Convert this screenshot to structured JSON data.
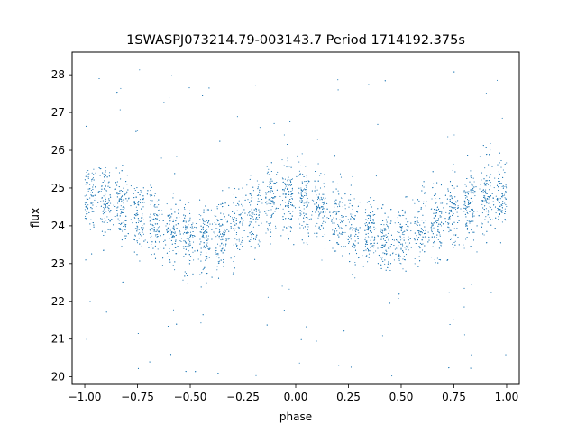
{
  "chart_data": {
    "type": "scatter",
    "title": "1SWASPJ073214.79-003143.7 Period 1714192.375s",
    "xlabel": "phase",
    "ylabel": "flux",
    "xlim": [
      -1.06,
      1.06
    ],
    "ylim": [
      19.8,
      28.6
    ],
    "grid": false,
    "legend": "none",
    "x_ticks": [
      -1.0,
      -0.75,
      -0.5,
      -0.25,
      0.0,
      0.25,
      0.5,
      0.75,
      1.0
    ],
    "x_tick_labels": [
      "−1.00",
      "−0.75",
      "−0.50",
      "−0.25",
      "0.00",
      "0.25",
      "0.50",
      "0.75",
      "1.00"
    ],
    "y_ticks": [
      20,
      21,
      22,
      23,
      24,
      25,
      26,
      27,
      28
    ],
    "y_tick_labels": [
      "20",
      "21",
      "22",
      "23",
      "24",
      "25",
      "26",
      "27",
      "28"
    ],
    "series": [
      {
        "color": "#1f77b4",
        "marker_size": "small",
        "phase_curve": {
          "phase": [
            0.0,
            0.05,
            0.1,
            0.15,
            0.2,
            0.25,
            0.3,
            0.35,
            0.4,
            0.45,
            0.5,
            0.55,
            0.6,
            0.65,
            0.7,
            0.75,
            0.8,
            0.85,
            0.9,
            0.95,
            1.0
          ],
          "median_flux": [
            24.8,
            24.7,
            24.6,
            24.4,
            24.2,
            24.0,
            23.9,
            23.8,
            23.7,
            23.6,
            23.7,
            23.8,
            23.9,
            24.0,
            24.1,
            24.3,
            24.4,
            24.6,
            24.7,
            24.75,
            24.8
          ],
          "scatter_sd": 0.45,
          "mirrored_negative_phase": true
        },
        "outlier_range": [
          20.0,
          28.2
        ]
      }
    ]
  }
}
